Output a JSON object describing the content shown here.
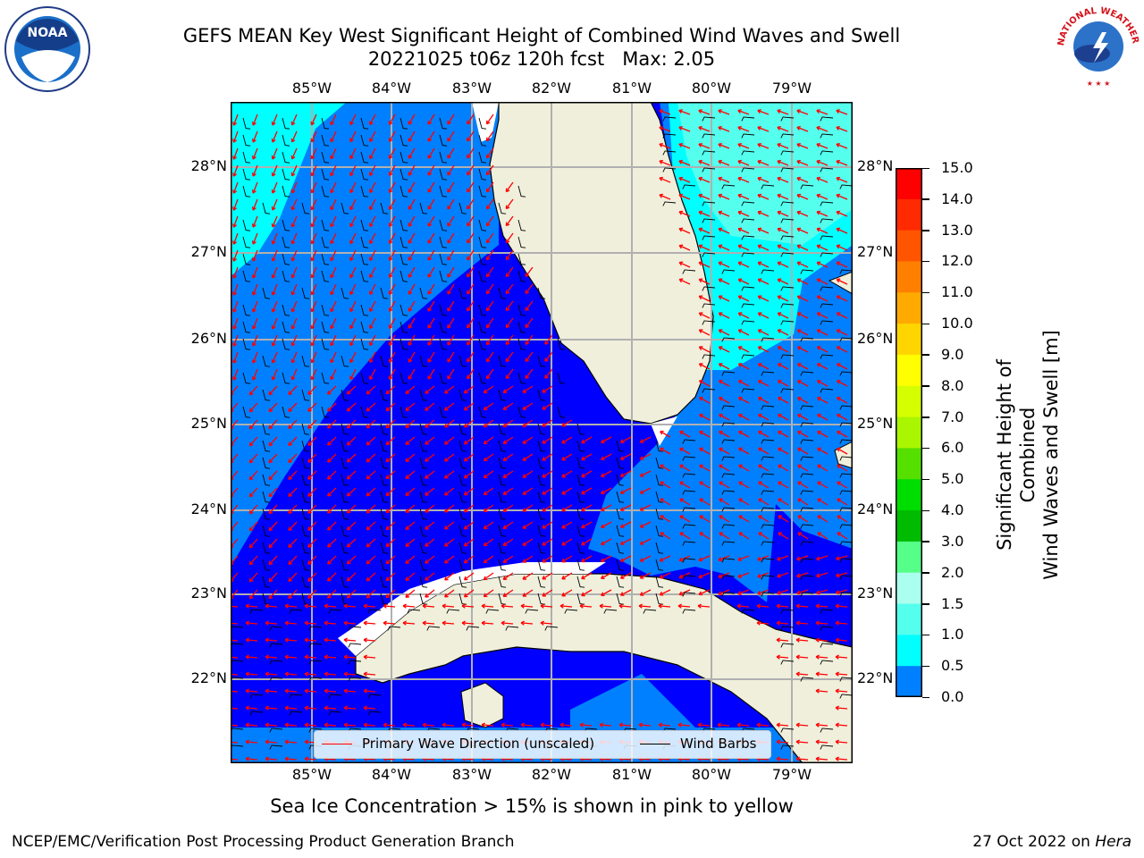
{
  "title": {
    "line1": "GEFS MEAN Key West Significant Height of Combined Wind Waves and Swell",
    "line2": "20221025 t06z 120h fcst   Max: 2.05"
  },
  "map": {
    "lon_labels": [
      "85°W",
      "84°W",
      "83°W",
      "82°W",
      "81°W",
      "80°W",
      "79°W"
    ],
    "lat_labels": [
      "28°N",
      "27°N",
      "26°N",
      "25°N",
      "24°N",
      "23°N",
      "22°N"
    ]
  },
  "colorbar": {
    "label_line1": "Significant Height of Combined",
    "label_line2": "Wind Waves and Swell [m]",
    "ticks": [
      "15.0",
      "14.0",
      "13.0",
      "12.0",
      "11.0",
      "10.0",
      "9.0",
      "8.0",
      "7.0",
      "6.0",
      "5.0",
      "4.0",
      "3.0",
      "2.0",
      "1.5",
      "1.0",
      "0.5",
      "0.0"
    ],
    "colors": [
      "#ff0000",
      "#ff2a00",
      "#ff5500",
      "#ff8000",
      "#ffaa00",
      "#ffd500",
      "#ffff00",
      "#d5ff00",
      "#aaf500",
      "#55e000",
      "#00dd00",
      "#00bb00",
      "#55ff88",
      "#aaffee",
      "#55ffee",
      "#00ffff",
      "#0080ff",
      "#0000ff"
    ]
  },
  "legend": {
    "wave_label": "Primary Wave Direction (unscaled)",
    "wind_label": "Wind Barbs",
    "wave_color": "#ff0000",
    "wind_color": "#000000"
  },
  "ice_note": "Sea Ice Concentration > 15% is shown in pink to yellow",
  "footer": {
    "left": "NCEP/EMC/Verification Post Processing Product Generation Branch",
    "date": "27 Oct 2022 on ",
    "host": "Hera"
  },
  "logos": {
    "noaa_text": "NOAA",
    "nws_ring_text": "NATIONAL WEATHER SERVICE"
  }
}
